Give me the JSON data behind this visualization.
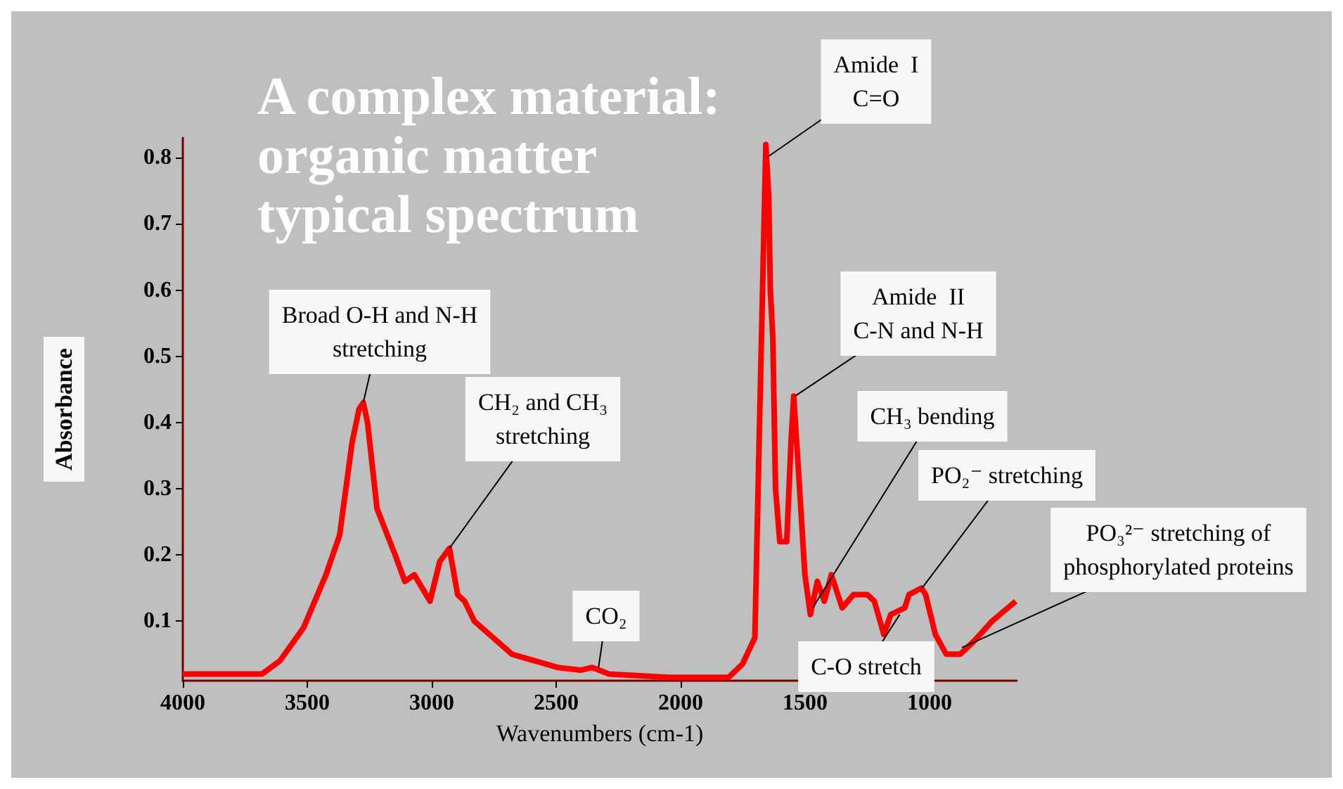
{
  "chart_data": {
    "type": "line",
    "title": "A complex material: organic matter typical spectrum",
    "xlabel": "Wavenumbers (cm-1)",
    "ylabel": "Absorbance",
    "x": [
      4000,
      3800,
      3682,
      3610,
      3515,
      3425,
      3370,
      3320,
      3292,
      3275,
      3258,
      3220,
      3147,
      3108,
      3070,
      3007,
      2968,
      2929,
      2896,
      2868,
      2829,
      2678,
      2494,
      2400,
      2355,
      2288,
      2048,
      1808,
      1752,
      1702,
      1685,
      1658,
      1646,
      1640,
      1630,
      1619,
      1602,
      1574,
      1557,
      1546,
      1529,
      1501,
      1479,
      1451,
      1423,
      1395,
      1351,
      1306,
      1250,
      1222,
      1184,
      1156,
      1100,
      1083,
      1033,
      1016,
      977,
      933,
      877,
      821,
      749,
      654
    ],
    "series": [
      {
        "color": "#ff0000",
        "values": [
          0.02,
          0.02,
          0.02,
          0.04,
          0.09,
          0.17,
          0.23,
          0.37,
          0.42,
          0.43,
          0.4,
          0.27,
          0.2,
          0.16,
          0.17,
          0.13,
          0.19,
          0.21,
          0.14,
          0.13,
          0.1,
          0.05,
          0.03,
          0.026,
          0.03,
          0.02,
          0.015,
          0.015,
          0.035,
          0.075,
          0.37,
          0.82,
          0.74,
          0.6,
          0.53,
          0.3,
          0.22,
          0.22,
          0.37,
          0.44,
          0.34,
          0.17,
          0.11,
          0.16,
          0.13,
          0.17,
          0.12,
          0.14,
          0.14,
          0.13,
          0.08,
          0.11,
          0.12,
          0.14,
          0.15,
          0.14,
          0.08,
          0.05,
          0.05,
          0.07,
          0.1,
          0.13
        ]
      }
    ],
    "xlim": [
      4000,
      650
    ],
    "xticks": [
      4000,
      3500,
      3000,
      2500,
      2000,
      1500,
      1000
    ],
    "ylim": [
      0.01,
      0.83
    ],
    "yticks": [
      0.1,
      0.2,
      0.3,
      0.4,
      0.5,
      0.6,
      0.7,
      0.8
    ],
    "grid": false,
    "annotations": [
      {
        "text": "Broad O-H and N-H\nstretching",
        "x": 3275,
        "y": 0.43
      },
      {
        "text": "CH₂ and CH₃\nstretching",
        "x": 2929,
        "y": 0.21
      },
      {
        "text": "CO₂",
        "x": 2330,
        "y": 0.03
      },
      {
        "text": "Amide  I\nC=O",
        "x": 1655,
        "y": 0.8
      },
      {
        "text": "Amide  II\nC-N and N-H",
        "x": 1540,
        "y": 0.44
      },
      {
        "text": "CH₃ bending",
        "x": 1470,
        "y": 0.12
      },
      {
        "text": "PO₂⁻ stretching",
        "x": 1030,
        "y": 0.15
      },
      {
        "text": "PO₃²⁻ stretching of\nphosphorylated proteins",
        "x": 870,
        "y": 0.06
      },
      {
        "text": "C-O stretch",
        "x": 1120,
        "y": 0.11
      }
    ]
  }
}
